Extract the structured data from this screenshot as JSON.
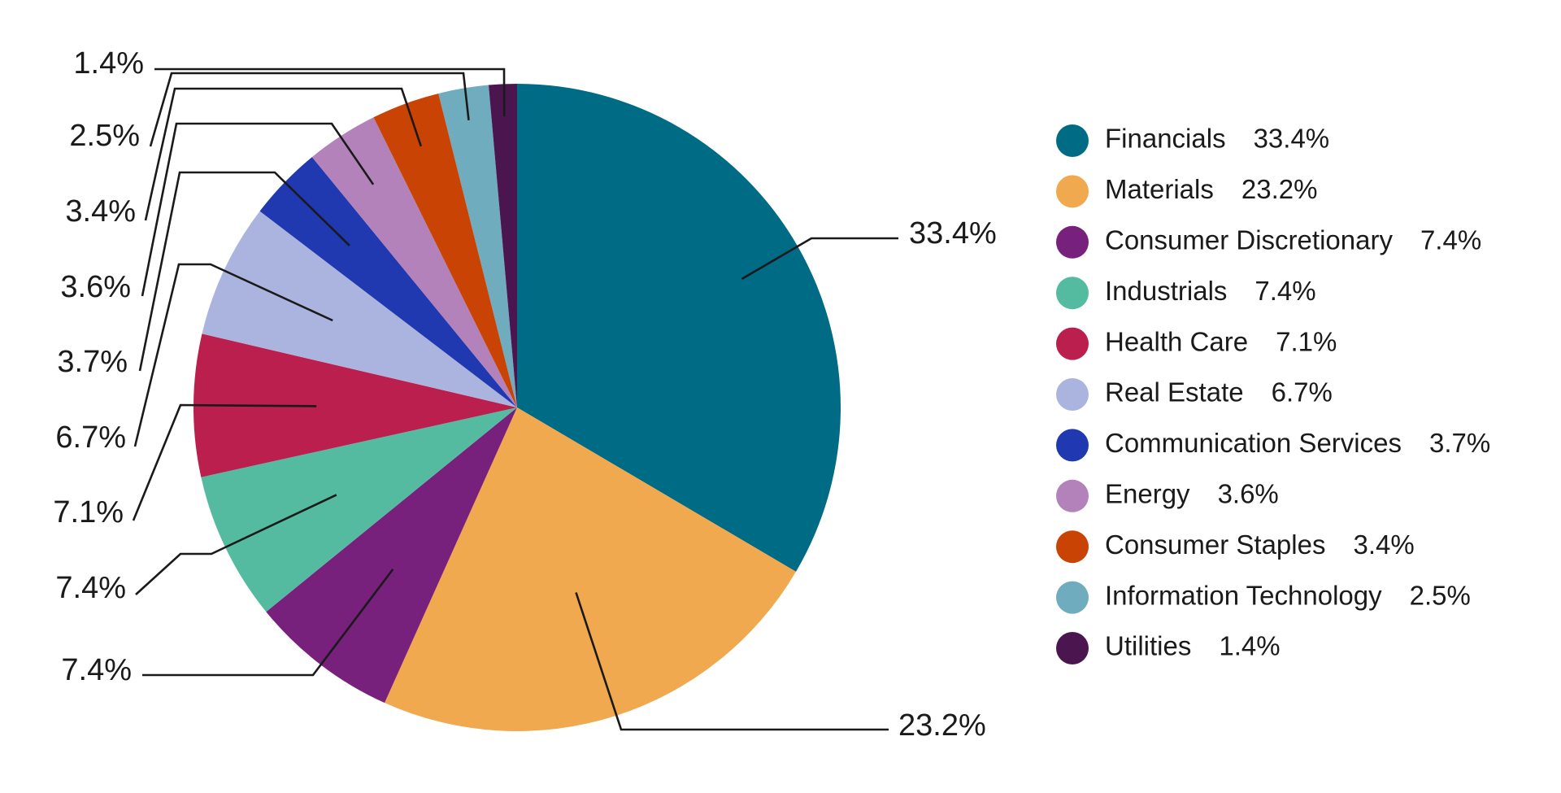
{
  "chart_data": {
    "type": "pie",
    "start": "top, clockwise",
    "legend_position": "right",
    "slices": [
      {
        "label": "Financials",
        "value": 33.4,
        "value_label": "33.4%",
        "color": "#006b85"
      },
      {
        "label": "Materials",
        "value": 23.2,
        "value_label": "23.2%",
        "color": "#f0a94e"
      },
      {
        "label": "Consumer Discretionary",
        "value": 7.4,
        "value_label": "7.4%",
        "color": "#77207c"
      },
      {
        "label": "Industrials",
        "value": 7.4,
        "value_label": "7.4%",
        "color": "#55bba0"
      },
      {
        "label": "Health Care",
        "value": 7.1,
        "value_label": "7.1%",
        "color": "#bb1f4d"
      },
      {
        "label": "Real Estate",
        "value": 6.7,
        "value_label": "6.7%",
        "color": "#abb4df"
      },
      {
        "label": "Communication Services",
        "value": 3.7,
        "value_label": "3.7%",
        "color": "#2038b0"
      },
      {
        "label": "Energy",
        "value": 3.6,
        "value_label": "3.6%",
        "color": "#b382ba"
      },
      {
        "label": "Consumer Staples",
        "value": 3.4,
        "value_label": "3.4%",
        "color": "#c94304"
      },
      {
        "label": "Information Technology",
        "value": 2.5,
        "value_label": "2.5%",
        "color": "#6facbe"
      },
      {
        "label": "Utilities",
        "value": 1.4,
        "value_label": "1.4%",
        "color": "#4b1650"
      }
    ]
  }
}
